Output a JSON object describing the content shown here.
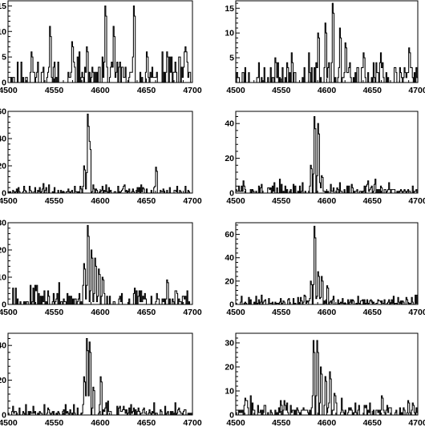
{
  "chart_data": [
    {
      "type": "histogram-step",
      "xlim": [
        4500,
        4700
      ],
      "ylim": [
        0,
        16
      ],
      "xticks": [
        "4500",
        "4550",
        "4600",
        "4650",
        "4700"
      ],
      "yticks": [
        "0",
        "5",
        "10",
        "15"
      ],
      "peaks": [
        [
          4525,
          6
        ],
        [
          4545,
          11
        ],
        [
          4569,
          8
        ],
        [
          4585,
          7
        ],
        [
          4605,
          15
        ],
        [
          4614,
          11
        ],
        [
          4636,
          15
        ],
        [
          4650,
          6
        ],
        [
          4672,
          6
        ],
        [
          4692,
          7
        ]
      ],
      "noise_level": 3,
      "noise_max": 6,
      "seed": 11
    },
    {
      "type": "histogram-step",
      "xlim": [
        4500,
        4700
      ],
      "ylim": [
        0,
        16.5
      ],
      "xticks": [
        "4500",
        "4550",
        "4600",
        "4650",
        "4700"
      ],
      "yticks": [
        "5",
        "10",
        "15"
      ],
      "peaks": [
        [
          4590,
          10
        ],
        [
          4598,
          12
        ],
        [
          4606,
          16
        ],
        [
          4614,
          11
        ],
        [
          4620,
          8
        ],
        [
          4640,
          6
        ],
        [
          4690,
          7
        ]
      ],
      "noise_level": 3,
      "noise_max": 6,
      "seed": 23
    },
    {
      "type": "histogram-step",
      "xlim": [
        4500,
        4700
      ],
      "ylim": [
        0,
        60
      ],
      "xticks": [
        "4500",
        "4550",
        "4600",
        "4650",
        "4700"
      ],
      "yticks": [
        "0",
        "20",
        "40",
        "60"
      ],
      "peaks": [
        [
          4582,
          20
        ],
        [
          4586,
          58
        ],
        [
          4588,
          38
        ],
        [
          4660,
          19
        ]
      ],
      "noise_level": 3,
      "noise_max": 7,
      "seed": 37
    },
    {
      "type": "histogram-step",
      "xlim": [
        4500,
        4700
      ],
      "ylim": [
        0,
        47
      ],
      "xticks": [
        "4500",
        "4550",
        "4600",
        "4650",
        "4700"
      ],
      "yticks": [
        "0",
        "20",
        "40"
      ],
      "peaks": [
        [
          4582,
          16
        ],
        [
          4586,
          44
        ],
        [
          4590,
          40
        ],
        [
          4594,
          10
        ]
      ],
      "noise_level": 3,
      "noise_max": 8,
      "seed": 51
    },
    {
      "type": "histogram-step",
      "xlim": [
        4500,
        4700
      ],
      "ylim": [
        0,
        30
      ],
      "xticks": [
        "4500",
        "4550",
        "4600",
        "4650",
        "4700"
      ],
      "yticks": [
        "0",
        "10",
        "20",
        "30"
      ],
      "peaks": [
        [
          4582,
          15
        ],
        [
          4586,
          29
        ],
        [
          4590,
          20
        ],
        [
          4594,
          17
        ],
        [
          4598,
          13
        ],
        [
          4602,
          10
        ],
        [
          4672,
          9
        ]
      ],
      "noise_level": 3,
      "noise_max": 8,
      "seed": 67
    },
    {
      "type": "histogram-step",
      "xlim": [
        4500,
        4700
      ],
      "ylim": [
        0,
        70
      ],
      "xticks": [
        "4500",
        "4550",
        "4600",
        "4650",
        "4700"
      ],
      "yticks": [
        "0",
        "20",
        "40",
        "60"
      ],
      "peaks": [
        [
          4582,
          20
        ],
        [
          4586,
          67
        ],
        [
          4590,
          28
        ],
        [
          4594,
          24
        ],
        [
          4600,
          16
        ]
      ],
      "noise_level": 3,
      "noise_max": 10,
      "seed": 79
    },
    {
      "type": "histogram-step",
      "xlim": [
        4500,
        4700
      ],
      "ylim": [
        0,
        47
      ],
      "xticks": [
        "4500",
        "4550",
        "4600",
        "4650",
        "4700"
      ],
      "yticks": [
        "0",
        "20",
        "40"
      ],
      "peaks": [
        [
          4582,
          22
        ],
        [
          4585,
          44
        ],
        [
          4588,
          42
        ],
        [
          4592,
          16
        ],
        [
          4600,
          22
        ]
      ],
      "noise_level": 3,
      "noise_max": 8,
      "seed": 91
    },
    {
      "type": "histogram-step",
      "xlim": [
        4500,
        4700
      ],
      "ylim": [
        0,
        34
      ],
      "xticks": [
        "4500",
        "4550",
        "4600",
        "4650",
        "4700"
      ],
      "yticks": [
        "0",
        "10",
        "20",
        "30"
      ],
      "peaks": [
        [
          4585,
          31
        ],
        [
          4589,
          31
        ],
        [
          4593,
          20
        ],
        [
          4598,
          16
        ],
        [
          4603,
          18
        ],
        [
          4608,
          9
        ],
        [
          4660,
          8
        ]
      ],
      "noise_level": 3,
      "noise_max": 8,
      "seed": 103
    }
  ]
}
